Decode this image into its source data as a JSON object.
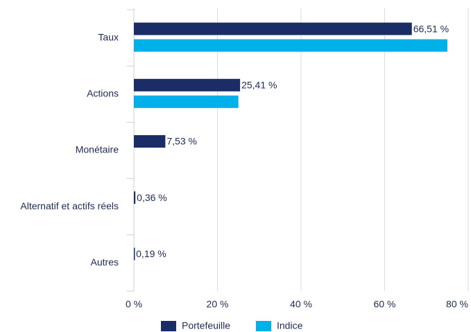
{
  "chart_data": {
    "type": "bar",
    "orientation": "horizontal",
    "categories": [
      "Taux",
      "Actions",
      "Monétaire",
      "Alternatif et actifs réels",
      "Autres"
    ],
    "series": [
      {
        "name": "Portefeuille",
        "color": "#1b2d66",
        "values": [
          66.51,
          25.41,
          7.53,
          0.36,
          0.19
        ],
        "value_labels": [
          "66,51 %",
          "25,41 %",
          "7,53 %",
          "0,36 %",
          "0,19 %"
        ]
      },
      {
        "name": "Indice",
        "color": "#00b1e9",
        "values": [
          75,
          25,
          null,
          null,
          null
        ]
      }
    ],
    "xlim": [
      0,
      80
    ],
    "xticks": [
      {
        "value": 0,
        "label": "0 %"
      },
      {
        "value": 20,
        "label": "20 %"
      },
      {
        "value": 40,
        "label": "40 %"
      },
      {
        "value": 60,
        "label": "60 %"
      },
      {
        "value": 80,
        "label": "80 %"
      }
    ],
    "grid": true,
    "legend": "bottom"
  }
}
